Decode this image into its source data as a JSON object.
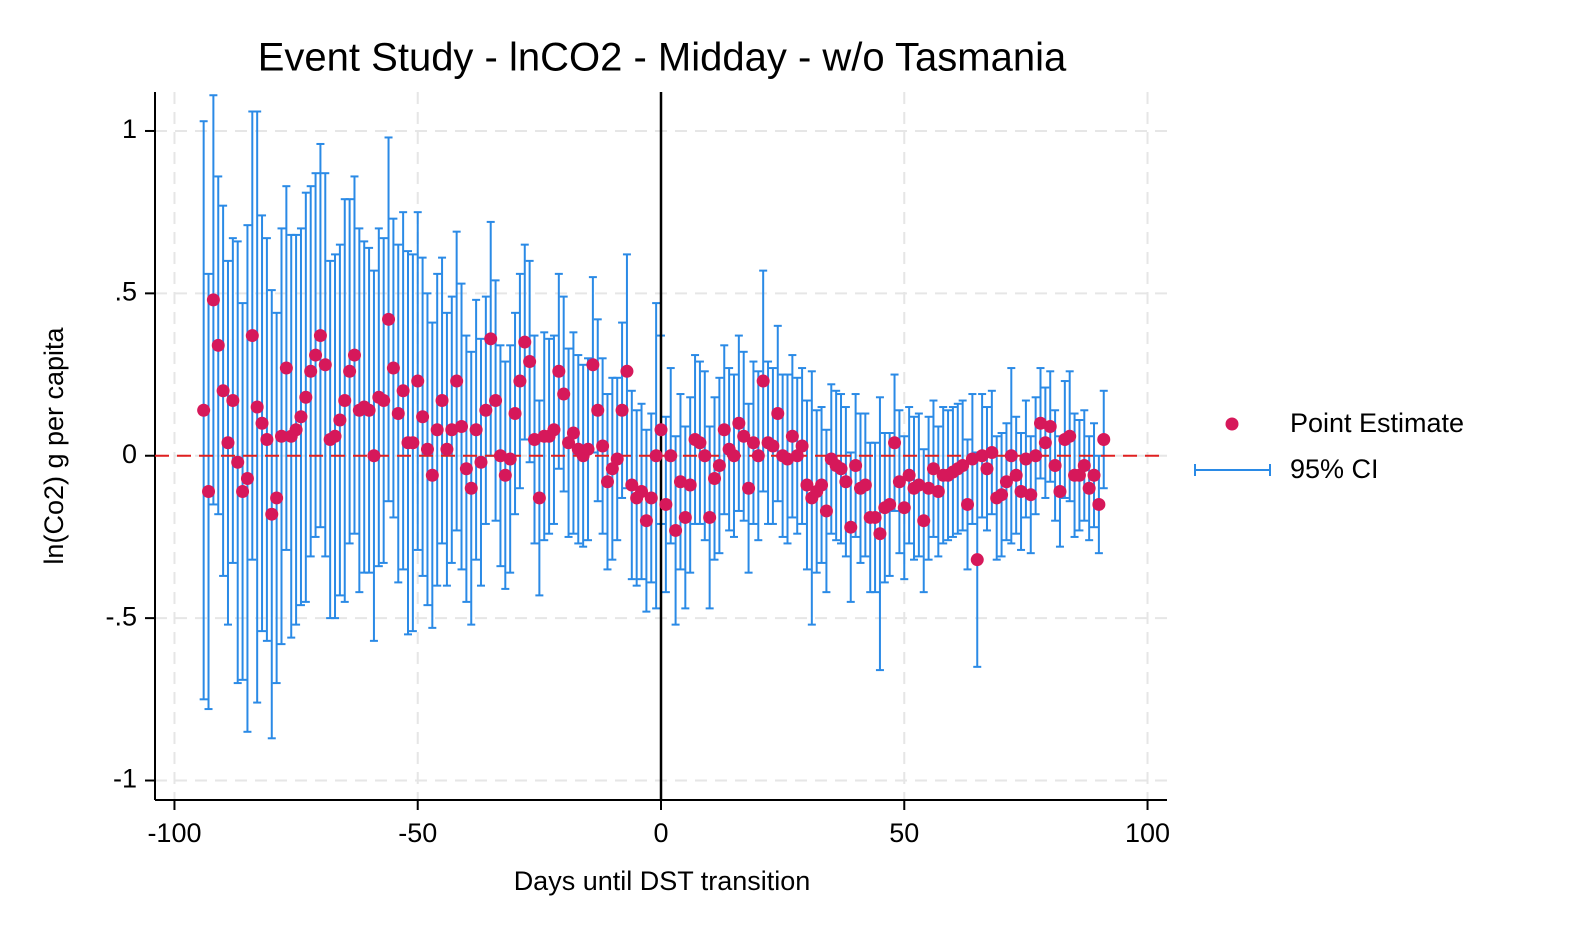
{
  "chart_data": {
    "type": "scatter",
    "title": "Event Study - lnCO2 - Midday - w/o Tasmania",
    "xlabel": "Days until DST transition",
    "ylabel": "ln(Co2) g per capita",
    "x": [
      -94,
      -93,
      -92,
      -91,
      -90,
      -89,
      -88,
      -87,
      -86,
      -85,
      -84,
      -83,
      -82,
      -81,
      -80,
      -79,
      -78,
      -77,
      -76,
      -75,
      -74,
      -73,
      -72,
      -71,
      -70,
      -69,
      -68,
      -67,
      -66,
      -65,
      -64,
      -63,
      -62,
      -61,
      -60,
      -59,
      -58,
      -57,
      -56,
      -55,
      -54,
      -53,
      -52,
      -51,
      -50,
      -49,
      -48,
      -47,
      -46,
      -45,
      -44,
      -43,
      -42,
      -41,
      -40,
      -39,
      -38,
      -37,
      -36,
      -35,
      -34,
      -33,
      -32,
      -31,
      -30,
      -29,
      -28,
      -27,
      -26,
      -25,
      -24,
      -23,
      -22,
      -21,
      -20,
      -19,
      -18,
      -17,
      -16,
      -15,
      -14,
      -13,
      -12,
      -11,
      -10,
      -9,
      -8,
      -7,
      -6,
      -5,
      -4,
      -3,
      -2,
      -1,
      0,
      1,
      2,
      3,
      4,
      5,
      6,
      7,
      8,
      9,
      10,
      11,
      12,
      13,
      14,
      15,
      16,
      17,
      18,
      19,
      20,
      21,
      22,
      23,
      24,
      25,
      26,
      27,
      28,
      29,
      30,
      31,
      32,
      33,
      34,
      35,
      36,
      37,
      38,
      39,
      40,
      41,
      42,
      43,
      44,
      45,
      46,
      47,
      48,
      49,
      50,
      51,
      52,
      53,
      54,
      55,
      56,
      57,
      58,
      59,
      60,
      61,
      62,
      63,
      64,
      65,
      66,
      67,
      68,
      69,
      70,
      71,
      72,
      73,
      74,
      75,
      76,
      77,
      78,
      79,
      80,
      81,
      82,
      83,
      84,
      85,
      86,
      87,
      88,
      89,
      90,
      91
    ],
    "series": [
      {
        "name": "Point Estimate",
        "color": "#d6185a",
        "values": [
          0.14,
          -0.11,
          0.48,
          0.34,
          0.2,
          0.04,
          0.17,
          -0.02,
          -0.11,
          -0.07,
          0.37,
          0.15,
          0.1,
          0.05,
          -0.18,
          -0.13,
          0.06,
          0.27,
          0.06,
          0.08,
          0.12,
          0.18,
          0.26,
          0.31,
          0.37,
          0.28,
          0.05,
          0.06,
          0.11,
          0.17,
          0.26,
          0.31,
          0.14,
          0.15,
          0.14,
          0.0,
          0.18,
          0.17,
          0.42,
          0.27,
          0.13,
          0.2,
          0.04,
          0.04,
          0.23,
          0.12,
          0.02,
          -0.06,
          0.08,
          0.17,
          0.02,
          0.08,
          0.23,
          0.09,
          -0.04,
          -0.1,
          0.08,
          -0.02,
          0.14,
          0.36,
          0.17,
          0.0,
          -0.06,
          -0.01,
          0.13,
          0.23,
          0.35,
          0.29,
          0.05,
          -0.13,
          0.06,
          0.06,
          0.08,
          0.26,
          0.19,
          0.04,
          0.07,
          0.02,
          0.0,
          0.02,
          0.28,
          0.14,
          0.03,
          -0.08,
          -0.04,
          -0.01,
          0.14,
          0.26,
          -0.09,
          -0.13,
          -0.11,
          -0.2,
          -0.13,
          0.0,
          0.08,
          -0.15,
          0.0,
          -0.23,
          -0.08,
          -0.19,
          -0.09,
          0.05,
          0.04,
          0.0,
          -0.19,
          -0.07,
          -0.03,
          0.08,
          0.02,
          0.0,
          0.1,
          0.06,
          -0.1,
          0.04,
          0.0,
          0.23,
          0.04,
          0.03,
          0.13,
          0.0,
          -0.01,
          0.06,
          0.0,
          0.03,
          -0.09,
          -0.13,
          -0.11,
          -0.09,
          -0.17,
          -0.01,
          -0.03,
          -0.04,
          -0.08,
          -0.22,
          -0.03,
          -0.1,
          -0.09,
          -0.19,
          -0.19,
          -0.24,
          -0.16,
          -0.15,
          0.04,
          -0.08,
          -0.16,
          -0.06,
          -0.1,
          -0.09,
          -0.2,
          -0.1,
          -0.04,
          -0.11,
          -0.06,
          -0.06,
          -0.05,
          -0.04,
          -0.03,
          -0.15,
          -0.01,
          -0.32,
          0.0,
          -0.04,
          0.01,
          -0.13,
          -0.12,
          -0.08,
          0.0,
          -0.06,
          -0.11,
          -0.01,
          -0.12,
          0.0,
          0.1,
          0.04,
          0.09,
          -0.03,
          -0.11,
          0.05,
          0.06,
          -0.06,
          -0.06,
          -0.03,
          -0.1,
          -0.06,
          -0.15,
          0.05
        ]
      },
      {
        "name": "95% CI",
        "color": "#2a8ae6",
        "errors": [
          0.89,
          0.67,
          0.63,
          0.52,
          0.57,
          0.56,
          0.5,
          0.68,
          0.58,
          0.78,
          0.69,
          0.91,
          0.64,
          0.62,
          0.69,
          0.57,
          0.64,
          0.56,
          0.62,
          0.6,
          0.58,
          0.63,
          0.57,
          0.56,
          0.59,
          0.59,
          0.55,
          0.56,
          0.54,
          0.62,
          0.53,
          0.55,
          0.56,
          0.51,
          0.5,
          0.57,
          0.52,
          0.5,
          0.56,
          0.46,
          0.52,
          0.55,
          0.59,
          0.58,
          0.52,
          0.49,
          0.48,
          0.47,
          0.48,
          0.44,
          0.42,
          0.41,
          0.46,
          0.44,
          0.41,
          0.42,
          0.4,
          0.38,
          0.35,
          0.36,
          0.37,
          0.34,
          0.35,
          0.35,
          0.31,
          0.33,
          0.3,
          0.31,
          0.32,
          0.3,
          0.32,
          0.3,
          0.29,
          0.3,
          0.3,
          0.29,
          0.31,
          0.29,
          0.28,
          0.28,
          0.27,
          0.28,
          0.27,
          0.27,
          0.28,
          0.25,
          0.27,
          0.36,
          0.29,
          0.27,
          0.27,
          0.28,
          0.26,
          0.47,
          0.29,
          0.27,
          0.27,
          0.29,
          0.27,
          0.28,
          0.27,
          0.26,
          0.25,
          0.26,
          0.28,
          0.25,
          0.27,
          0.26,
          0.25,
          0.25,
          0.27,
          0.26,
          0.26,
          0.25,
          0.26,
          0.34,
          0.25,
          0.24,
          0.27,
          0.25,
          0.26,
          0.25,
          0.24,
          0.24,
          0.26,
          0.39,
          0.25,
          0.24,
          0.25,
          0.23,
          0.23,
          0.23,
          0.23,
          0.23,
          0.22,
          0.23,
          0.22,
          0.23,
          0.23,
          0.42,
          0.23,
          0.22,
          0.21,
          0.22,
          0.22,
          0.21,
          0.22,
          0.22,
          0.22,
          0.22,
          0.21,
          0.2,
          0.21,
          0.2,
          0.2,
          0.2,
          0.2,
          0.2,
          0.2,
          0.33,
          0.19,
          0.19,
          0.19,
          0.19,
          0.19,
          0.18,
          0.27,
          0.18,
          0.18,
          0.18,
          0.18,
          0.18,
          0.17,
          0.17,
          0.17,
          0.17,
          0.17,
          0.18,
          0.2,
          0.19,
          0.17,
          0.17,
          0.16,
          0.16,
          0.15,
          0.15
        ]
      }
    ],
    "xlim": [
      -104,
      104
    ],
    "ylim": [
      -1.06,
      1.12
    ],
    "xticks": [
      -100,
      -50,
      0,
      50,
      100
    ],
    "yticks": [
      {
        "value": -1,
        "label": "-1"
      },
      {
        "value": -0.5,
        "label": "-.5"
      },
      0,
      {
        "value": 0.5,
        "label": ".5"
      },
      1
    ],
    "vline": 0,
    "vline_color": "#000000",
    "hline": 0,
    "hline_color": "#e02020",
    "grid": true,
    "legend": "right"
  }
}
